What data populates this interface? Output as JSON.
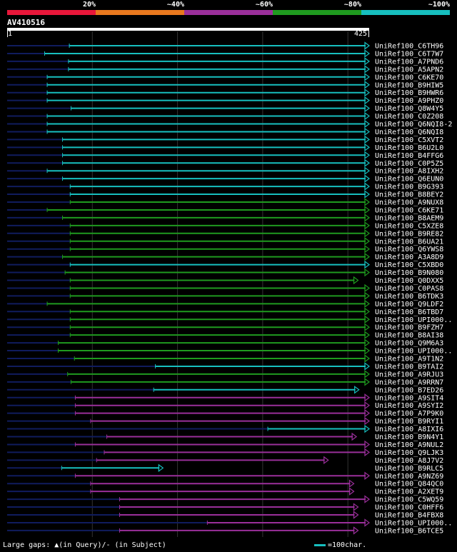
{
  "legend": {
    "labels": [
      "20%",
      "~40%",
      "~60%",
      "~80%",
      "~100%"
    ],
    "colors": [
      "#e8173a",
      "#e8781e",
      "#9a2f9a",
      "#1f9a1f",
      "#17bfbf"
    ]
  },
  "query": {
    "name": "AV410516",
    "start": "1",
    "end": "425",
    "length": 425
  },
  "footer": {
    "large_gaps": "Large gaps: ▲(in Query)/- (in Subject)",
    "scale_label": "=100char."
  },
  "colors": {
    "navy": "#101c5e",
    "cyan": "#17bfbf",
    "green": "#1f9a1f",
    "purple": "#9a2f9a",
    "grid": "#333333"
  },
  "hits": [
    {
      "id": "UniRef100_C6TH96",
      "c": "cyan",
      "s": 73,
      "e": 425,
      "as": 1,
      "ae": 425
    },
    {
      "id": "UniRef100_C6T7W7",
      "c": "cyan",
      "s": 44,
      "e": 425,
      "as": 1,
      "ae": 425
    },
    {
      "id": "UniRef100_A7PND6",
      "c": "cyan",
      "s": 72,
      "e": 425,
      "as": 1,
      "ae": 425
    },
    {
      "id": "UniRef100_A5APN2",
      "c": "cyan",
      "s": 72,
      "e": 425,
      "as": 1,
      "ae": 425
    },
    {
      "id": "UniRef100_C6KE70",
      "c": "cyan",
      "s": 47,
      "e": 425,
      "as": 1,
      "ae": 425
    },
    {
      "id": "UniRef100_B9HIW5",
      "c": "cyan",
      "s": 47,
      "e": 425,
      "as": 1,
      "ae": 425
    },
    {
      "id": "UniRef100_B9HWR6",
      "c": "cyan",
      "s": 47,
      "e": 425,
      "as": 1,
      "ae": 425
    },
    {
      "id": "UniRef100_A9PHZ0",
      "c": "cyan",
      "s": 47,
      "e": 425,
      "as": 1,
      "ae": 425
    },
    {
      "id": "UniRef100_Q8W4Y5",
      "c": "cyan",
      "s": 75,
      "e": 425,
      "as": 1,
      "ae": 425
    },
    {
      "id": "UniRef100_C0Z208",
      "c": "cyan",
      "s": 47,
      "e": 425,
      "as": 1,
      "ae": 425
    },
    {
      "id": "UniRef100_Q6NQI8-2",
      "c": "cyan",
      "s": 47,
      "e": 425,
      "as": 1,
      "ae": 425
    },
    {
      "id": "UniRef100_Q6NQI8",
      "c": "cyan",
      "s": 47,
      "e": 425,
      "as": 1,
      "ae": 425
    },
    {
      "id": "UniRef100_C5XVT2",
      "c": "cyan",
      "s": 65,
      "e": 425,
      "as": 1,
      "ae": 425
    },
    {
      "id": "UniRef100_B6U2L0",
      "c": "cyan",
      "s": 65,
      "e": 425,
      "as": 1,
      "ae": 425
    },
    {
      "id": "UniRef100_B4FFG6",
      "c": "cyan",
      "s": 65,
      "e": 425,
      "as": 1,
      "ae": 425
    },
    {
      "id": "UniRef100_C0P5Z5",
      "c": "cyan",
      "s": 65,
      "e": 425,
      "as": 1,
      "ae": 425
    },
    {
      "id": "UniRef100_A8IXH2",
      "c": "cyan",
      "s": 47,
      "e": 425,
      "as": 1,
      "ae": 425
    },
    {
      "id": "UniRef100_Q6EUN0",
      "c": "cyan",
      "s": 65,
      "e": 425,
      "as": 1,
      "ae": 425
    },
    {
      "id": "UniRef100_B9G393",
      "c": "cyan",
      "s": 74,
      "e": 425,
      "as": 1,
      "ae": 425
    },
    {
      "id": "UniRef100_B8BEY2",
      "c": "cyan",
      "s": 74,
      "e": 425,
      "as": 1,
      "ae": 425
    },
    {
      "id": "UniRef100_A9NUX8",
      "c": "green",
      "s": 74,
      "e": 425,
      "as": 1,
      "ae": 425
    },
    {
      "id": "UniRef100_C6KE71",
      "c": "green",
      "s": 47,
      "e": 425,
      "as": 1,
      "ae": 425
    },
    {
      "id": "UniRef100_B8AEM9",
      "c": "green",
      "s": 65,
      "e": 425,
      "as": 1,
      "ae": 425
    },
    {
      "id": "UniRef100_C5XZE8",
      "c": "green",
      "s": 74,
      "e": 425,
      "as": 1,
      "ae": 425
    },
    {
      "id": "UniRef100_B9RE82",
      "c": "green",
      "s": 74,
      "e": 425,
      "as": 1,
      "ae": 425
    },
    {
      "id": "UniRef100_B6UA21",
      "c": "green",
      "s": 74,
      "e": 425,
      "as": 1,
      "ae": 425
    },
    {
      "id": "UniRef100_Q6YWS8",
      "c": "green",
      "s": 74,
      "e": 425,
      "as": 1,
      "ae": 425
    },
    {
      "id": "UniRef100_A3A8D9",
      "c": "green",
      "s": 65,
      "e": 425,
      "as": 1,
      "ae": 425
    },
    {
      "id": "UniRef100_C5XBD0",
      "c": "cyan",
      "s": 74,
      "e": 425,
      "as": 1,
      "ae": 425
    },
    {
      "id": "UniRef100_B9N080",
      "c": "green",
      "s": 68,
      "e": 425,
      "as": 1,
      "ae": 425
    },
    {
      "id": "UniRef100_Q0DXX5",
      "c": "green",
      "s": 74,
      "e": 412,
      "as": 1,
      "ae": 412
    },
    {
      "id": "UniRef100_C0PAS8",
      "c": "green",
      "s": 74,
      "e": 425,
      "as": 1,
      "ae": 425
    },
    {
      "id": "UniRef100_B6TDK3",
      "c": "green",
      "s": 74,
      "e": 425,
      "as": 1,
      "ae": 425
    },
    {
      "id": "UniRef100_Q9LDF2",
      "c": "green",
      "s": 47,
      "e": 425,
      "as": 1,
      "ae": 425
    },
    {
      "id": "UniRef100_B6TBD7",
      "c": "green",
      "s": 74,
      "e": 425,
      "as": 1,
      "ae": 425
    },
    {
      "id": "UniRef100_UPI000..",
      "c": "green",
      "s": 74,
      "e": 425,
      "as": 1,
      "ae": 425
    },
    {
      "id": "UniRef100_B9FZH7",
      "c": "green",
      "s": 74,
      "e": 425,
      "as": 1,
      "ae": 425
    },
    {
      "id": "UniRef100_B8AI38",
      "c": "green",
      "s": 74,
      "e": 425,
      "as": 1,
      "ae": 425
    },
    {
      "id": "UniRef100_Q9M6A3",
      "c": "green",
      "s": 60,
      "e": 425,
      "as": 1,
      "ae": 425
    },
    {
      "id": "UniRef100_UPI000..",
      "c": "green",
      "s": 60,
      "e": 425,
      "as": 1,
      "ae": 425
    },
    {
      "id": "UniRef100_A9T1N2",
      "c": "green",
      "s": 79,
      "e": 425,
      "as": 1,
      "ae": 425
    },
    {
      "id": "UniRef100_B9TAI2",
      "c": "cyan",
      "s": 174,
      "e": 425,
      "as": 1,
      "ae": 425
    },
    {
      "id": "UniRef100_A9RJU3",
      "c": "green",
      "s": 71,
      "e": 425,
      "as": 1,
      "ae": 425
    },
    {
      "id": "UniRef100_A9RRN7",
      "c": "green",
      "s": 75,
      "e": 425,
      "as": 1,
      "ae": 425
    },
    {
      "id": "UniRef100_B7ED26",
      "c": "cyan",
      "s": 172,
      "e": 413,
      "as": 1,
      "ae": 413
    },
    {
      "id": "UniRef100_A9SIT4",
      "c": "purple",
      "s": 80,
      "e": 425,
      "as": 1,
      "ae": 425
    },
    {
      "id": "UniRef100_A9SYI2",
      "c": "purple",
      "s": 80,
      "e": 425,
      "as": 1,
      "ae": 425
    },
    {
      "id": "UniRef100_A7P9K0",
      "c": "purple",
      "s": 80,
      "e": 425,
      "as": 1,
      "ae": 425
    },
    {
      "id": "UniRef100_B9RYI1",
      "c": "purple",
      "s": 98,
      "e": 425,
      "as": 1,
      "ae": 425
    },
    {
      "id": "UniRef100_A8IXI6",
      "c": "cyan",
      "s": 306,
      "e": 425,
      "as": 1,
      "ae": 425
    },
    {
      "id": "UniRef100_B9N4Y1",
      "c": "purple",
      "s": 117,
      "e": 410,
      "as": 1,
      "ae": 410
    },
    {
      "id": "UniRef100_A9NUL2",
      "c": "purple",
      "s": 80,
      "e": 425,
      "as": 1,
      "ae": 425
    },
    {
      "id": "UniRef100_Q9LJK3",
      "c": "purple",
      "s": 114,
      "e": 425,
      "as": 1,
      "ae": 425
    },
    {
      "id": "UniRef100_A8J7V2",
      "c": "purple",
      "s": 105,
      "e": 377,
      "as": 1,
      "ae": 377
    },
    {
      "id": "UniRef100_B9RLC5",
      "c": "cyan",
      "s": 64,
      "e": 183,
      "as": 1,
      "ae": 183
    },
    {
      "id": "UniRef100_A9NZ69",
      "c": "purple",
      "s": 80,
      "e": 425,
      "as": 1,
      "ae": 425
    },
    {
      "id": "UniRef100_Q84QC0",
      "c": "purple",
      "s": 98,
      "e": 407,
      "as": 1,
      "ae": 407
    },
    {
      "id": "UniRef100_A2XET9",
      "c": "purple",
      "s": 98,
      "e": 407,
      "as": 1,
      "ae": 407
    },
    {
      "id": "UniRef100_C5WQ59",
      "c": "purple",
      "s": 132,
      "e": 425,
      "as": 1,
      "ae": 425
    },
    {
      "id": "UniRef100_C0HFF6",
      "c": "purple",
      "s": 132,
      "e": 412,
      "as": 1,
      "ae": 412
    },
    {
      "id": "UniRef100_B4FBX8",
      "c": "purple",
      "s": 132,
      "e": 412,
      "as": 1,
      "ae": 412
    },
    {
      "id": "UniRef100_UPI000..",
      "c": "purple",
      "s": 235,
      "e": 425,
      "as": 1,
      "ae": 425
    },
    {
      "id": "UniRef100_B6TCE5",
      "c": "purple",
      "s": 132,
      "e": 412,
      "as": 1,
      "ae": 412
    }
  ]
}
